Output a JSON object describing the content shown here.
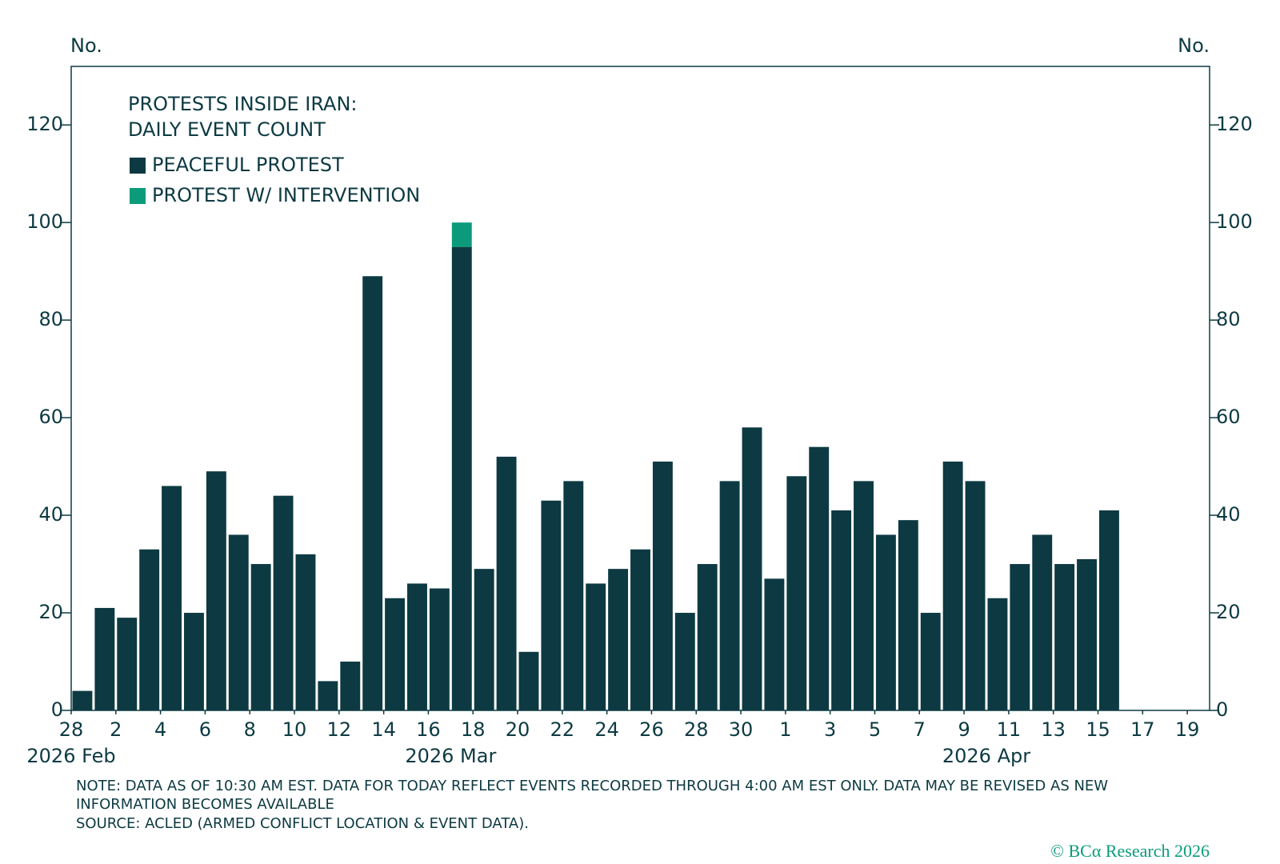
{
  "chart_data": {
    "type": "stacked_bar",
    "title": [
      "PROTESTS INSIDE IRAN:",
      "DAILY EVENT COUNT"
    ],
    "ylabel": "No.",
    "y2label": "No.",
    "x": [
      "2026-02-28",
      "2026-03-01",
      "2026-03-02",
      "2026-03-03",
      "2026-03-04",
      "2026-03-05",
      "2026-03-06",
      "2026-03-07",
      "2026-03-08",
      "2026-03-09",
      "2026-03-10",
      "2026-03-11",
      "2026-03-12",
      "2026-03-13",
      "2026-03-14",
      "2026-03-15",
      "2026-03-16",
      "2026-03-17",
      "2026-03-18",
      "2026-03-19",
      "2026-03-20",
      "2026-03-21",
      "2026-03-22",
      "2026-03-23",
      "2026-03-24",
      "2026-03-25",
      "2026-03-26",
      "2026-03-27",
      "2026-03-28",
      "2026-03-29",
      "2026-03-30",
      "2026-03-31",
      "2026-04-01",
      "2026-04-02",
      "2026-04-03",
      "2026-04-04",
      "2026-04-05",
      "2026-04-06",
      "2026-04-07",
      "2026-04-08",
      "2026-04-09",
      "2026-04-10",
      "2026-04-11",
      "2026-04-12",
      "2026-04-13",
      "2026-04-14",
      "2026-04-15",
      "2026-04-16",
      "2026-04-17",
      "2026-04-18",
      "2026-04-19"
    ],
    "series": [
      {
        "name": "PEACEFUL PROTEST",
        "color": "#0d3a42",
        "values": [
          4,
          21,
          19,
          33,
          46,
          20,
          49,
          36,
          30,
          44,
          32,
          6,
          10,
          89,
          23,
          26,
          25,
          95,
          29,
          52,
          12,
          43,
          47,
          26,
          29,
          33,
          51,
          20,
          30,
          47,
          58,
          27,
          48,
          54,
          41,
          47,
          36,
          39,
          20,
          51,
          47,
          23,
          30,
          36,
          30,
          31,
          41,
          null,
          null,
          null,
          null
        ]
      },
      {
        "name": "PROTEST W/ INTERVENTION",
        "color": "#0b9b7b",
        "values": [
          0,
          0,
          0,
          0,
          0,
          0,
          0,
          0,
          0,
          0,
          0,
          0,
          0,
          0,
          0,
          0,
          0,
          5,
          0,
          0,
          0,
          0,
          0,
          0,
          0,
          0,
          0,
          0,
          0,
          0,
          0,
          0,
          0,
          0,
          0,
          0,
          0,
          0,
          0,
          0,
          0,
          0,
          0,
          0,
          0,
          0,
          0,
          null,
          null,
          null,
          null
        ]
      }
    ],
    "xlim": [
      "2026-02-28",
      "2026-04-20"
    ],
    "xticks": [
      {
        "value": "2026-02-28",
        "label": "28"
      },
      {
        "value": "2026-03-02",
        "label": "2"
      },
      {
        "value": "2026-03-04",
        "label": "4"
      },
      {
        "value": "2026-03-06",
        "label": "6"
      },
      {
        "value": "2026-03-08",
        "label": "8"
      },
      {
        "value": "2026-03-10",
        "label": "10"
      },
      {
        "value": "2026-03-12",
        "label": "12"
      },
      {
        "value": "2026-03-14",
        "label": "14"
      },
      {
        "value": "2026-03-16",
        "label": "16"
      },
      {
        "value": "2026-03-18",
        "label": "18"
      },
      {
        "value": "2026-03-20",
        "label": "20"
      },
      {
        "value": "2026-03-22",
        "label": "22"
      },
      {
        "value": "2026-03-24",
        "label": "24"
      },
      {
        "value": "2026-03-26",
        "label": "26"
      },
      {
        "value": "2026-03-28",
        "label": "28"
      },
      {
        "value": "2026-03-30",
        "label": "30"
      },
      {
        "value": "2026-04-01",
        "label": "1"
      },
      {
        "value": "2026-04-03",
        "label": "3"
      },
      {
        "value": "2026-04-05",
        "label": "5"
      },
      {
        "value": "2026-04-07",
        "label": "7"
      },
      {
        "value": "2026-04-09",
        "label": "9"
      },
      {
        "value": "2026-04-11",
        "label": "11"
      },
      {
        "value": "2026-04-13",
        "label": "13"
      },
      {
        "value": "2026-04-15",
        "label": "15"
      },
      {
        "value": "2026-04-17",
        "label": "17"
      },
      {
        "value": "2026-04-19",
        "label": "19"
      }
    ],
    "month_labels": [
      {
        "value": "2026-02-28",
        "label": "2026 Feb"
      },
      {
        "value": "2026-03-17",
        "label": "2026 Mar"
      },
      {
        "value": "2026-04-10",
        "label": "2026 Apr"
      }
    ],
    "ylim": [
      0,
      132
    ],
    "yticks": [
      0,
      20,
      40,
      60,
      80,
      100,
      120
    ],
    "y2lim": [
      0,
      132
    ],
    "y2ticks": [
      0,
      20,
      40,
      60,
      80,
      100,
      120
    ],
    "legend": "top-left",
    "note": [
      "NOTE: DATA AS OF 10:30 AM EST. DATA FOR TODAY REFLECT EVENTS RECORDED THROUGH 4:00 AM EST ONLY. DATA MAY BE REVISED AS NEW",
      "INFORMATION BECOMES AVAILABLE"
    ],
    "source": "SOURCE: ACLED (ARMED CONFLICT LOCATION & EVENT DATA).",
    "copyright": "© BCα Research 2026"
  }
}
